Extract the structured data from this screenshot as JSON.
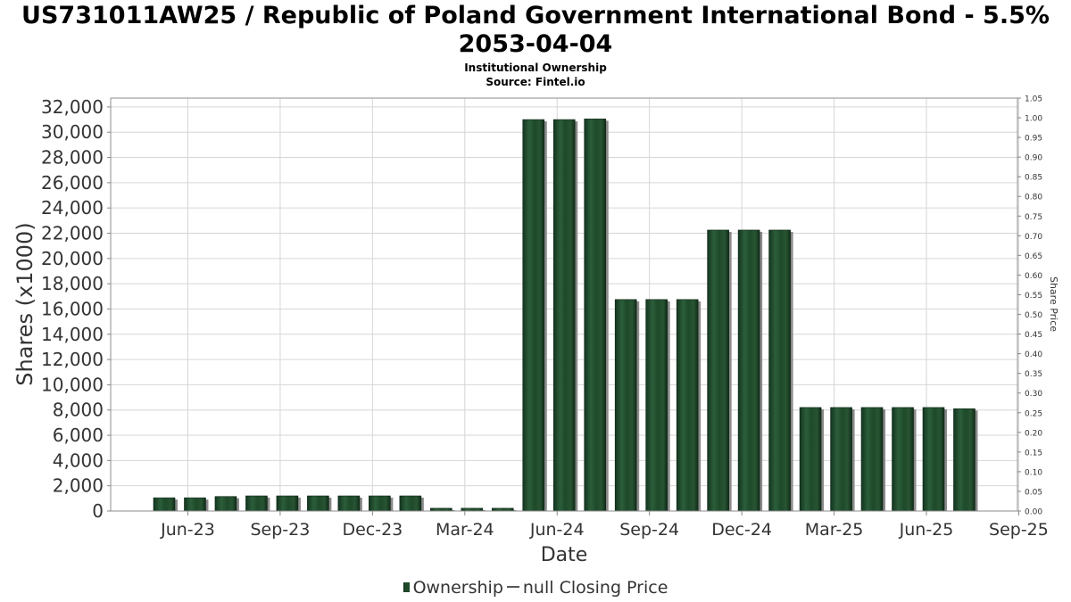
{
  "chart_data": {
    "type": "bar",
    "title": "US731011AW25 / Republic of Poland Government International Bond - 5.5% 2053-04-04",
    "subtitle": "Institutional Ownership",
    "source": "Source: Fintel.io",
    "xlabel": "Date",
    "ylabel": "Shares (x1000)",
    "y2label": "Share Price",
    "ylim": [
      0,
      32700
    ],
    "y2lim": [
      0,
      1.05
    ],
    "yticks": [
      "0",
      "2,000",
      "4,000",
      "6,000",
      "8,000",
      "10,000",
      "12,000",
      "14,000",
      "16,000",
      "18,000",
      "20,000",
      "22,000",
      "24,000",
      "26,000",
      "28,000",
      "30,000",
      "32,000"
    ],
    "y2ticks": [
      "0.00",
      "0.05",
      "0.10",
      "0.15",
      "0.20",
      "0.25",
      "0.30",
      "0.35",
      "0.40",
      "0.45",
      "0.50",
      "0.55",
      "0.60",
      "0.65",
      "0.70",
      "0.75",
      "0.80",
      "0.85",
      "0.90",
      "0.95",
      "1.00",
      "1.05"
    ],
    "xticks": [
      "Jun-23",
      "Sep-23",
      "Dec-23",
      "Mar-24",
      "Jun-24",
      "Sep-24",
      "Dec-24",
      "Mar-25",
      "Jun-25",
      "Sep-25"
    ],
    "grid": true,
    "legend_position": "bottom",
    "colors": {
      "bar": "#1e4a2a",
      "bar_shadow": "#8a8a8a",
      "grid": "#d6d6d6"
    },
    "series": [
      {
        "name": "Ownership",
        "values": [
          1050,
          1050,
          1150,
          1200,
          1200,
          1200,
          1200,
          1200,
          1200,
          220,
          220,
          220,
          31000,
          31000,
          31050,
          16750,
          16750,
          16750,
          22250,
          22250,
          22250,
          8200,
          8200,
          8200,
          8200,
          8200,
          8100
        ]
      }
    ]
  },
  "legend": {
    "ownership_label": "Ownership",
    "price_label": "null Closing Price"
  }
}
